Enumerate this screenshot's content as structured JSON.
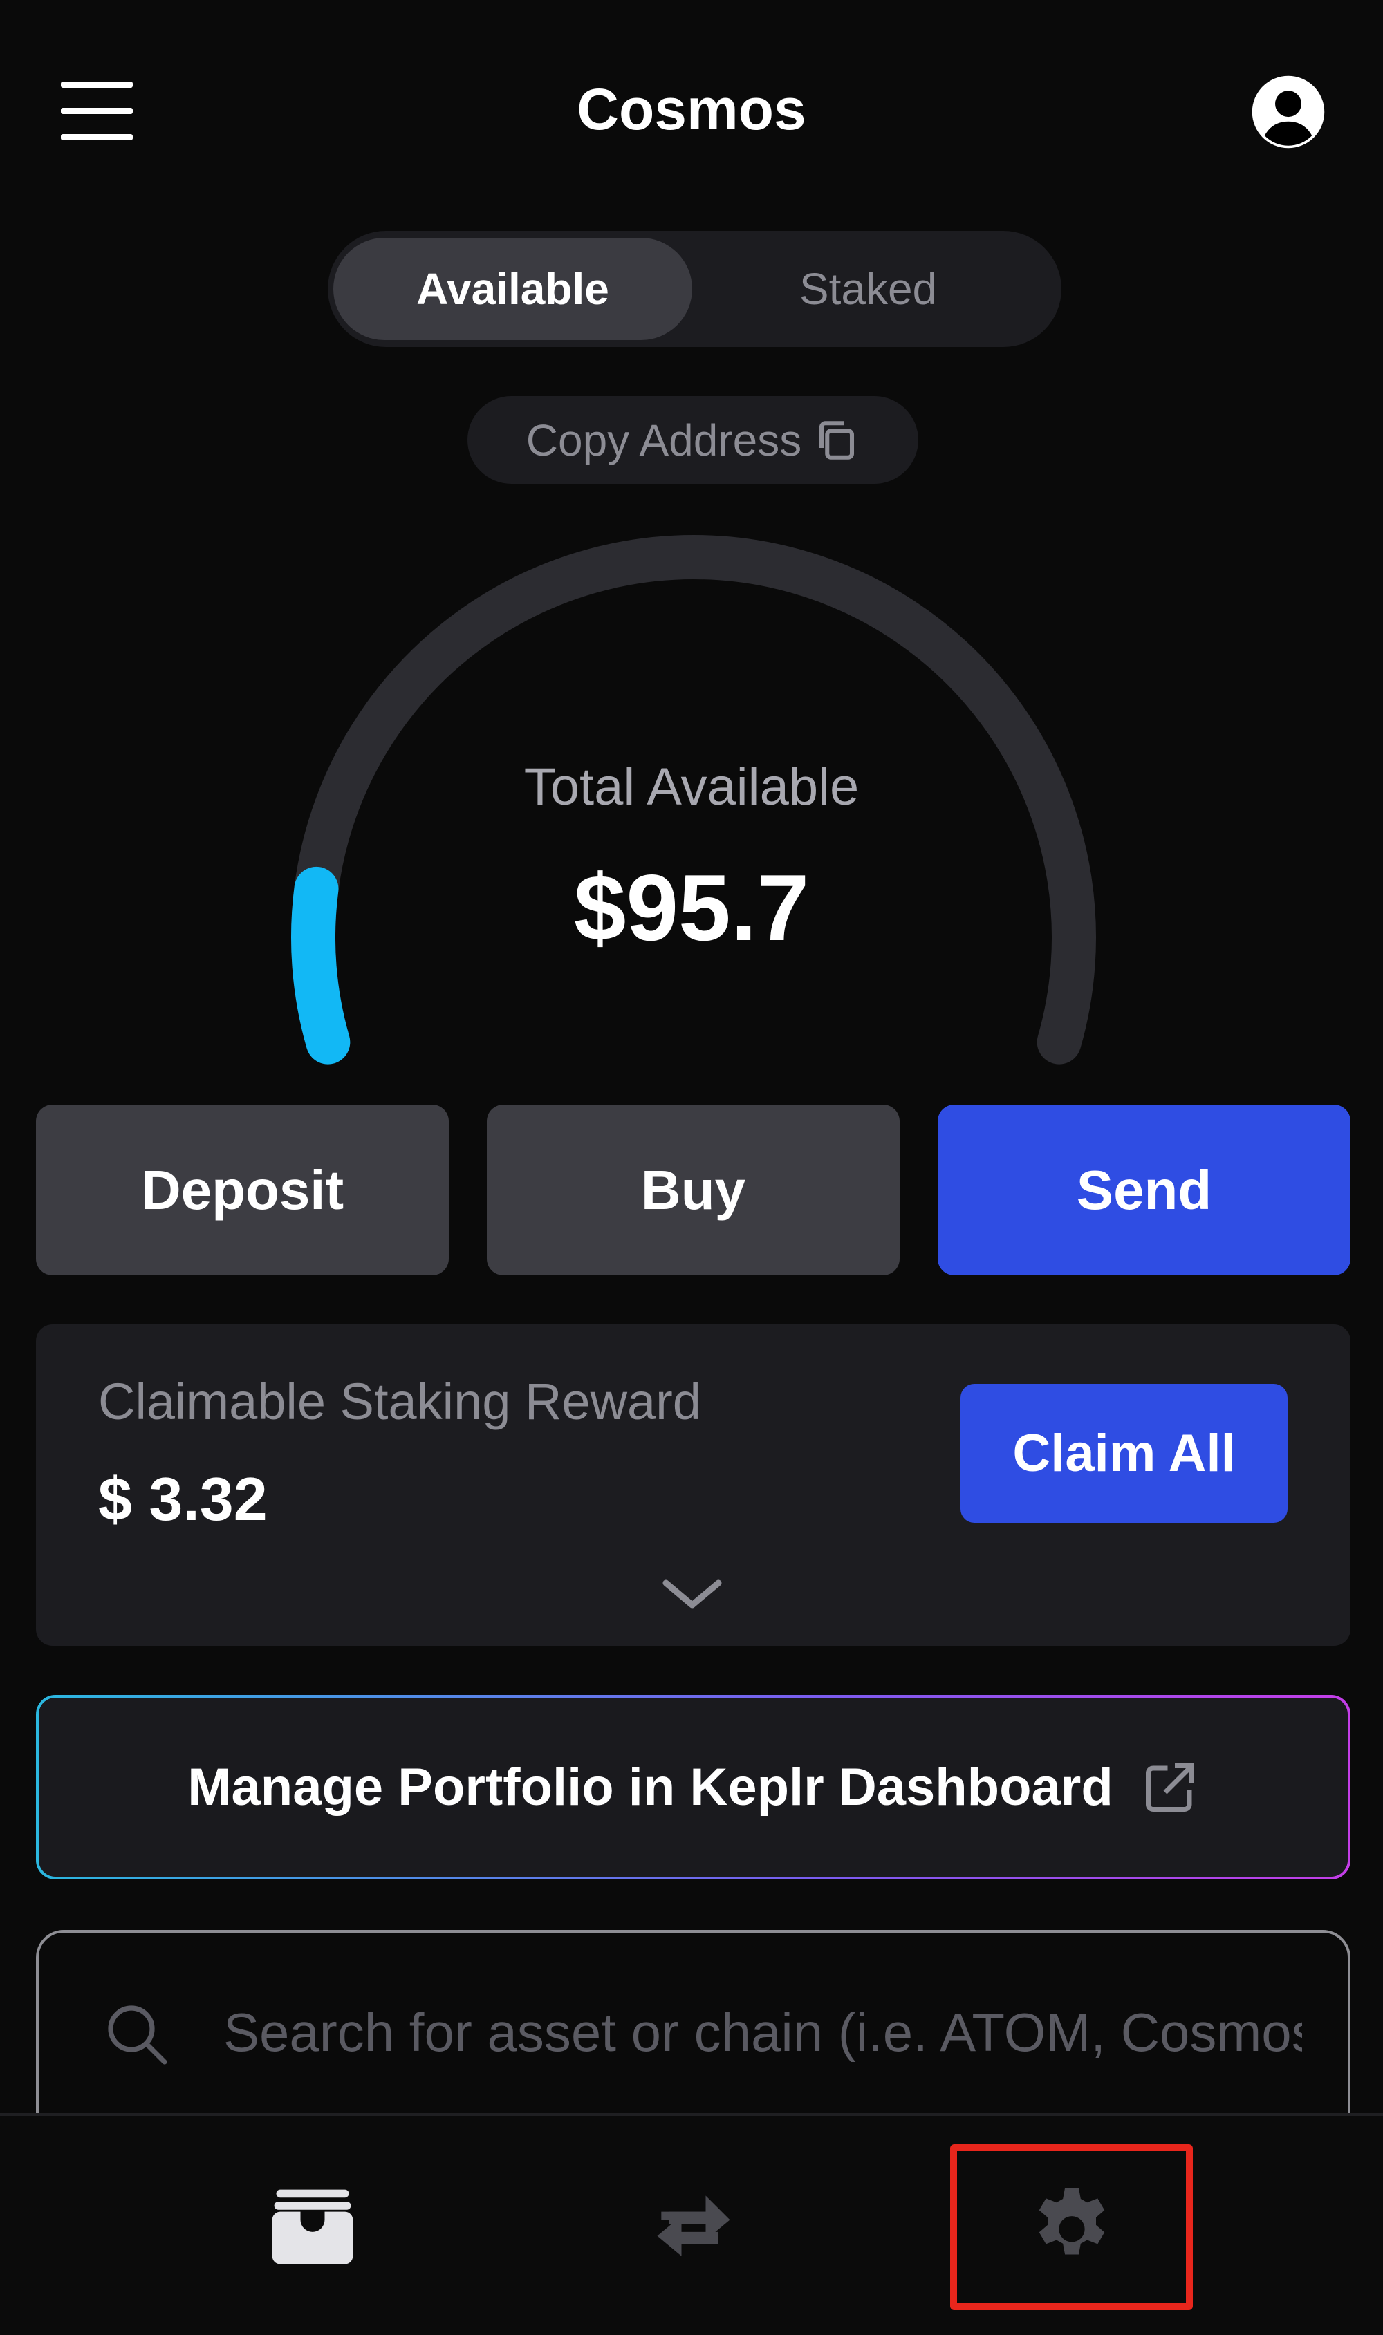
{
  "header": {
    "title": "Cosmos",
    "menu_icon": "hamburger-icon",
    "account_icon": "user-circle-icon"
  },
  "balance_toggle": {
    "options": [
      "Available",
      "Staked"
    ],
    "selected": "Available"
  },
  "copy_address": {
    "label": "Copy Address",
    "icon": "copy-icon"
  },
  "balance": {
    "label": "Total Available",
    "value": "$95.7",
    "gauge_fill": 0.11,
    "gauge_color": "#12b8f5",
    "track_color": "#2c2c31"
  },
  "actions": {
    "deposit": "Deposit",
    "buy": "Buy",
    "send": "Send",
    "accent": "#2f4de3"
  },
  "rewards": {
    "label": "Claimable Staking Reward",
    "value": "$ 3.32",
    "claim_label": "Claim All",
    "expand_icon": "chevron-down-icon"
  },
  "dashboard_link": {
    "label": "Manage Portfolio in Keplr Dashboard",
    "icon": "external-link-icon"
  },
  "search": {
    "placeholder": "Search for asset or chain (i.e. ATOM, Cosmos)",
    "value": ""
  },
  "bottom_nav": {
    "items": [
      {
        "icon": "wallet-icon",
        "active": true
      },
      {
        "icon": "swap-arrows-icon",
        "active": false
      },
      {
        "icon": "gear-icon",
        "active": false,
        "highlighted": true
      }
    ],
    "highlight_color": "#e8261c"
  }
}
